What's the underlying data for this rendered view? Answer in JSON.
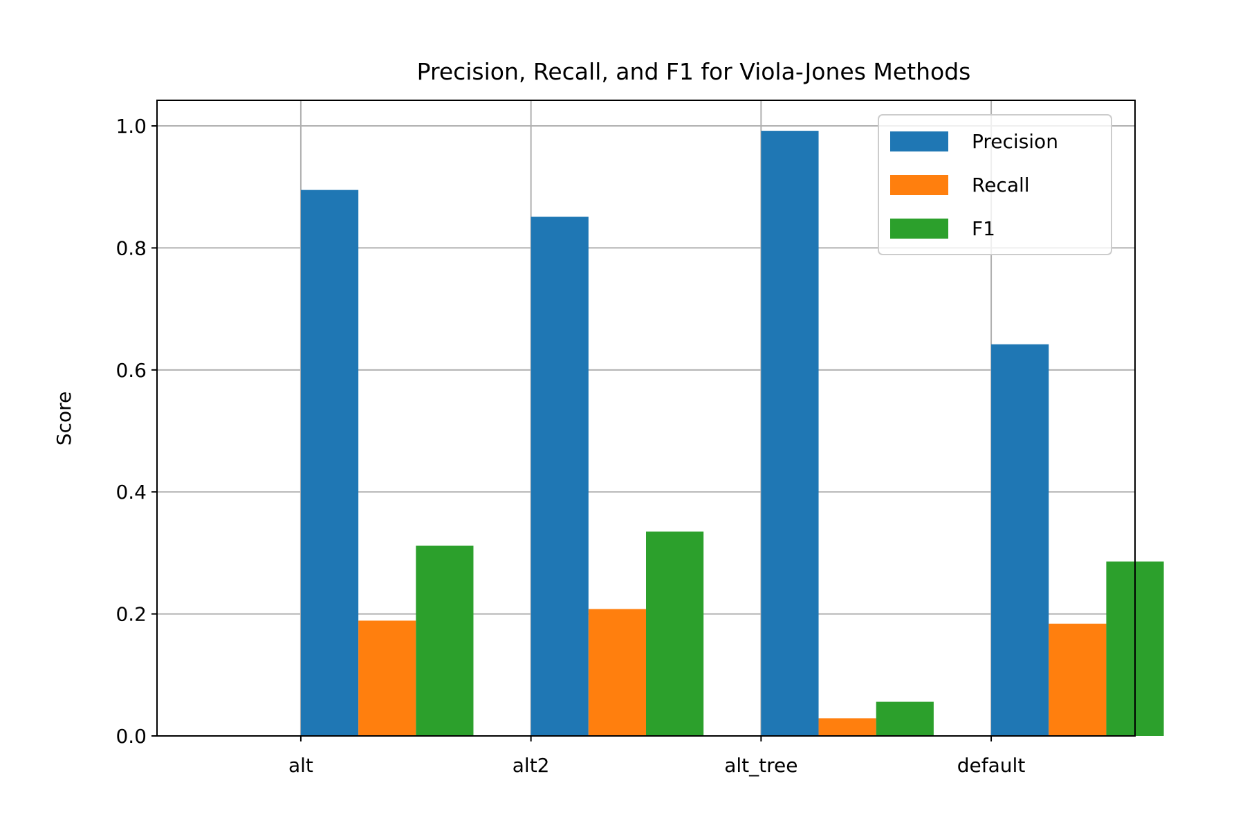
{
  "chart_data": {
    "type": "bar",
    "title": "Precision, Recall, and F1 for Viola-Jones Methods",
    "xlabel": "",
    "ylabel": "Score",
    "categories": [
      "alt",
      "alt2",
      "alt_tree",
      "default"
    ],
    "series": [
      {
        "name": "Precision",
        "color": "#1f77b4",
        "values": [
          0.895,
          0.851,
          0.992,
          0.642
        ]
      },
      {
        "name": "Recall",
        "color": "#ff7f0e",
        "values": [
          0.189,
          0.208,
          0.029,
          0.184
        ]
      },
      {
        "name": "F1",
        "color": "#2ca02c",
        "values": [
          0.312,
          0.335,
          0.056,
          0.286
        ]
      }
    ],
    "ylim": [
      0,
      1.042
    ],
    "yticks": [
      "0.0",
      "0.2",
      "0.4",
      "0.6",
      "0.8",
      "1.0"
    ],
    "grid": true,
    "legend_position": "top-right"
  }
}
